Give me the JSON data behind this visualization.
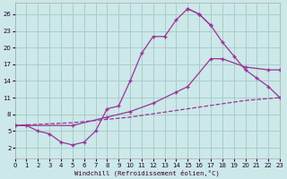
{
  "xlabel": "Windchill (Refroidissement éolien,°C)",
  "bg_color": "#cce8e8",
  "grid_color": "#aacccc",
  "line_color": "#993399",
  "ylim": [
    0,
    28
  ],
  "xlim": [
    0,
    23
  ],
  "yticks": [
    2,
    5,
    8,
    11,
    14,
    17,
    20,
    23,
    26
  ],
  "xticks": [
    0,
    1,
    2,
    3,
    4,
    5,
    6,
    7,
    8,
    9,
    10,
    11,
    12,
    13,
    14,
    15,
    16,
    17,
    18,
    19,
    20,
    21,
    22,
    23
  ],
  "curve_main_x": [
    0,
    1,
    2,
    3,
    4,
    5,
    6,
    7,
    8,
    9,
    10,
    11,
    12,
    13,
    14,
    15,
    16,
    17
  ],
  "curve_main_y": [
    6,
    6,
    5,
    4.5,
    3,
    2.5,
    3,
    5,
    9,
    9.5,
    14,
    19,
    22,
    22,
    25,
    27,
    26,
    24
  ],
  "curve_right_x": [
    15,
    16,
    17,
    18,
    19,
    20,
    21,
    22,
    23
  ],
  "curve_right_y": [
    27,
    26,
    24,
    21,
    18.5,
    16,
    14.5,
    13,
    11
  ],
  "curve_mid_x": [
    0,
    5,
    8,
    10,
    12,
    14,
    15,
    17,
    18,
    20,
    22,
    23
  ],
  "curve_mid_y": [
    6,
    6,
    7.5,
    8.5,
    10,
    12,
    13,
    18,
    18,
    16.5,
    16,
    16
  ],
  "curve_diag_x": [
    0,
    5,
    10,
    15,
    20,
    23
  ],
  "curve_diag_y": [
    6,
    6.5,
    7.5,
    9,
    10.5,
    11
  ]
}
